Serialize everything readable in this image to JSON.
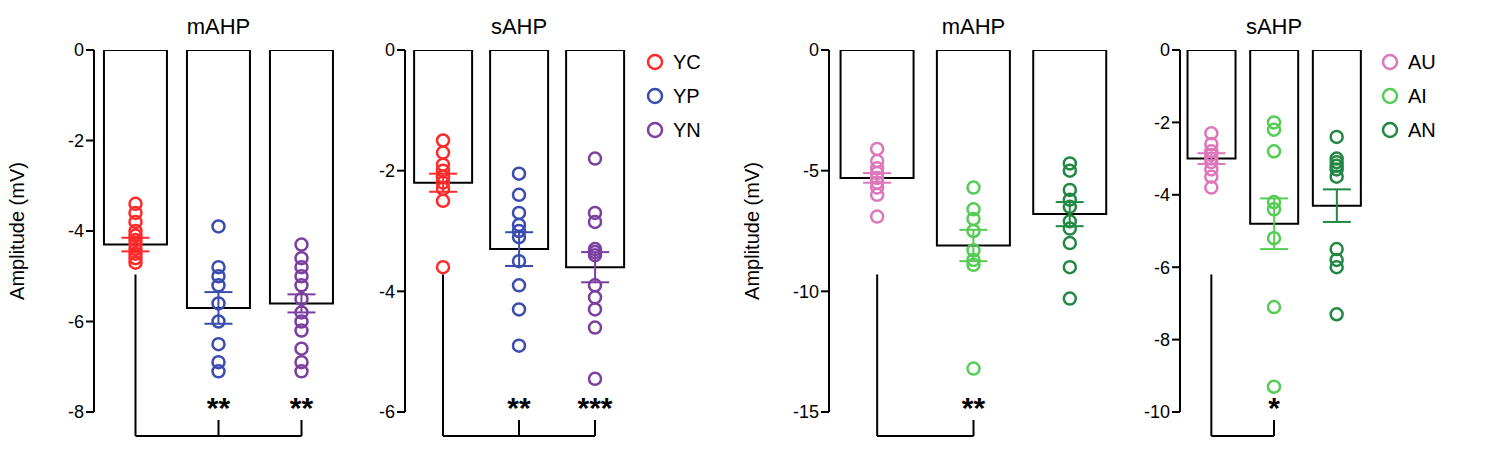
{
  "chart_data": [
    {
      "type": "bar",
      "title": "mAHP",
      "y_label": "Amplitude (mV)",
      "categories": [
        "YC",
        "YP",
        "YN"
      ],
      "colors": [
        "#ff2a2a",
        "#3b4bb0",
        "#7b3fa0"
      ],
      "values": [
        -4.3,
        -5.7,
        -5.6
      ],
      "errors": [
        0.15,
        0.35,
        0.2
      ],
      "points": [
        [
          -3.4,
          -3.6,
          -3.8,
          -4.0,
          -4.1,
          -4.2,
          -4.3,
          -4.4,
          -4.5,
          -4.6,
          -4.7
        ],
        [
          -3.9,
          -4.8,
          -5.0,
          -5.2,
          -5.6,
          -6.0,
          -6.5,
          -6.9,
          -7.1
        ],
        [
          -4.3,
          -4.6,
          -4.8,
          -5.0,
          -5.2,
          -5.5,
          -5.8,
          -6.0,
          -6.2,
          -6.6,
          -6.9,
          -7.1
        ]
      ],
      "significance": [
        null,
        "**",
        "**"
      ],
      "ylim": [
        -8,
        0
      ],
      "yticks": [
        -8,
        -6,
        -4,
        -2,
        0
      ],
      "tick_labels": "y"
    },
    {
      "type": "bar",
      "title": "sAHP",
      "categories": [
        "YC",
        "YP",
        "YN"
      ],
      "colors": [
        "#ff2a2a",
        "#3b4bb0",
        "#7b3fa0"
      ],
      "values": [
        -2.2,
        -3.3,
        -3.6
      ],
      "errors": [
        0.15,
        0.28,
        0.25
      ],
      "points": [
        [
          -1.5,
          -1.7,
          -1.9,
          -2.0,
          -2.1,
          -2.1,
          -2.2,
          -2.3,
          -2.5,
          -3.6
        ],
        [
          -2.05,
          -2.4,
          -2.7,
          -2.9,
          -3.0,
          -3.1,
          -3.5,
          -3.9,
          -4.3,
          -4.9
        ],
        [
          -1.8,
          -2.7,
          -2.85,
          -3.3,
          -3.35,
          -3.4,
          -3.9,
          -4.1,
          -4.3,
          -4.6,
          -5.45
        ]
      ],
      "significance": [
        null,
        "**",
        "***"
      ],
      "ylim": [
        -6,
        0
      ],
      "yticks": [
        -6,
        -4,
        -2,
        0
      ],
      "tick_labels": "y",
      "legend": "right"
    },
    {
      "type": "bar",
      "title": "mAHP",
      "y_label": "Amplitude (mV)",
      "categories": [
        "AU",
        "AI",
        "AN"
      ],
      "colors": [
        "#dd77bb",
        "#55cc55",
        "#228844"
      ],
      "values": [
        -5.3,
        -8.1,
        -6.8
      ],
      "errors": [
        0.2,
        0.65,
        0.5
      ],
      "points": [
        [
          -4.1,
          -4.6,
          -4.9,
          -5.1,
          -5.3,
          -5.5,
          -5.7,
          -6.0,
          -6.9
        ],
        [
          -5.7,
          -6.6,
          -7.0,
          -7.5,
          -8.3,
          -8.7,
          -8.9,
          -13.2
        ],
        [
          -4.7,
          -5.0,
          -5.8,
          -6.2,
          -6.5,
          -7.1,
          -7.4,
          -8.0,
          -9.0,
          -10.3
        ]
      ],
      "significance": [
        null,
        "**",
        null
      ],
      "ylim": [
        -15,
        0
      ],
      "yticks": [
        -15,
        -10,
        -5,
        0
      ],
      "tick_labels": "y"
    },
    {
      "type": "bar",
      "title": "sAHP",
      "categories": [
        "AU",
        "AI",
        "AN"
      ],
      "colors": [
        "#dd77bb",
        "#55cc55",
        "#228844"
      ],
      "values": [
        -3.0,
        -4.8,
        -4.3
      ],
      "errors": [
        0.15,
        0.7,
        0.45
      ],
      "points": [
        [
          -2.3,
          -2.6,
          -2.8,
          -2.9,
          -3.0,
          -3.1,
          -3.3,
          -3.5,
          -3.8
        ],
        [
          -2.0,
          -2.2,
          -2.8,
          -4.2,
          -4.4,
          -5.2,
          -7.1,
          -9.3
        ],
        [
          -2.4,
          -3.0,
          -3.1,
          -3.2,
          -3.3,
          -3.5,
          -5.5,
          -5.8,
          -6.0,
          -7.3
        ]
      ],
      "significance": [
        null,
        "*",
        null
      ],
      "ylim": [
        -10,
        0
      ],
      "yticks": [
        -10,
        -8,
        -6,
        -4,
        -2,
        0
      ],
      "tick_labels": "y",
      "legend": "right"
    }
  ]
}
